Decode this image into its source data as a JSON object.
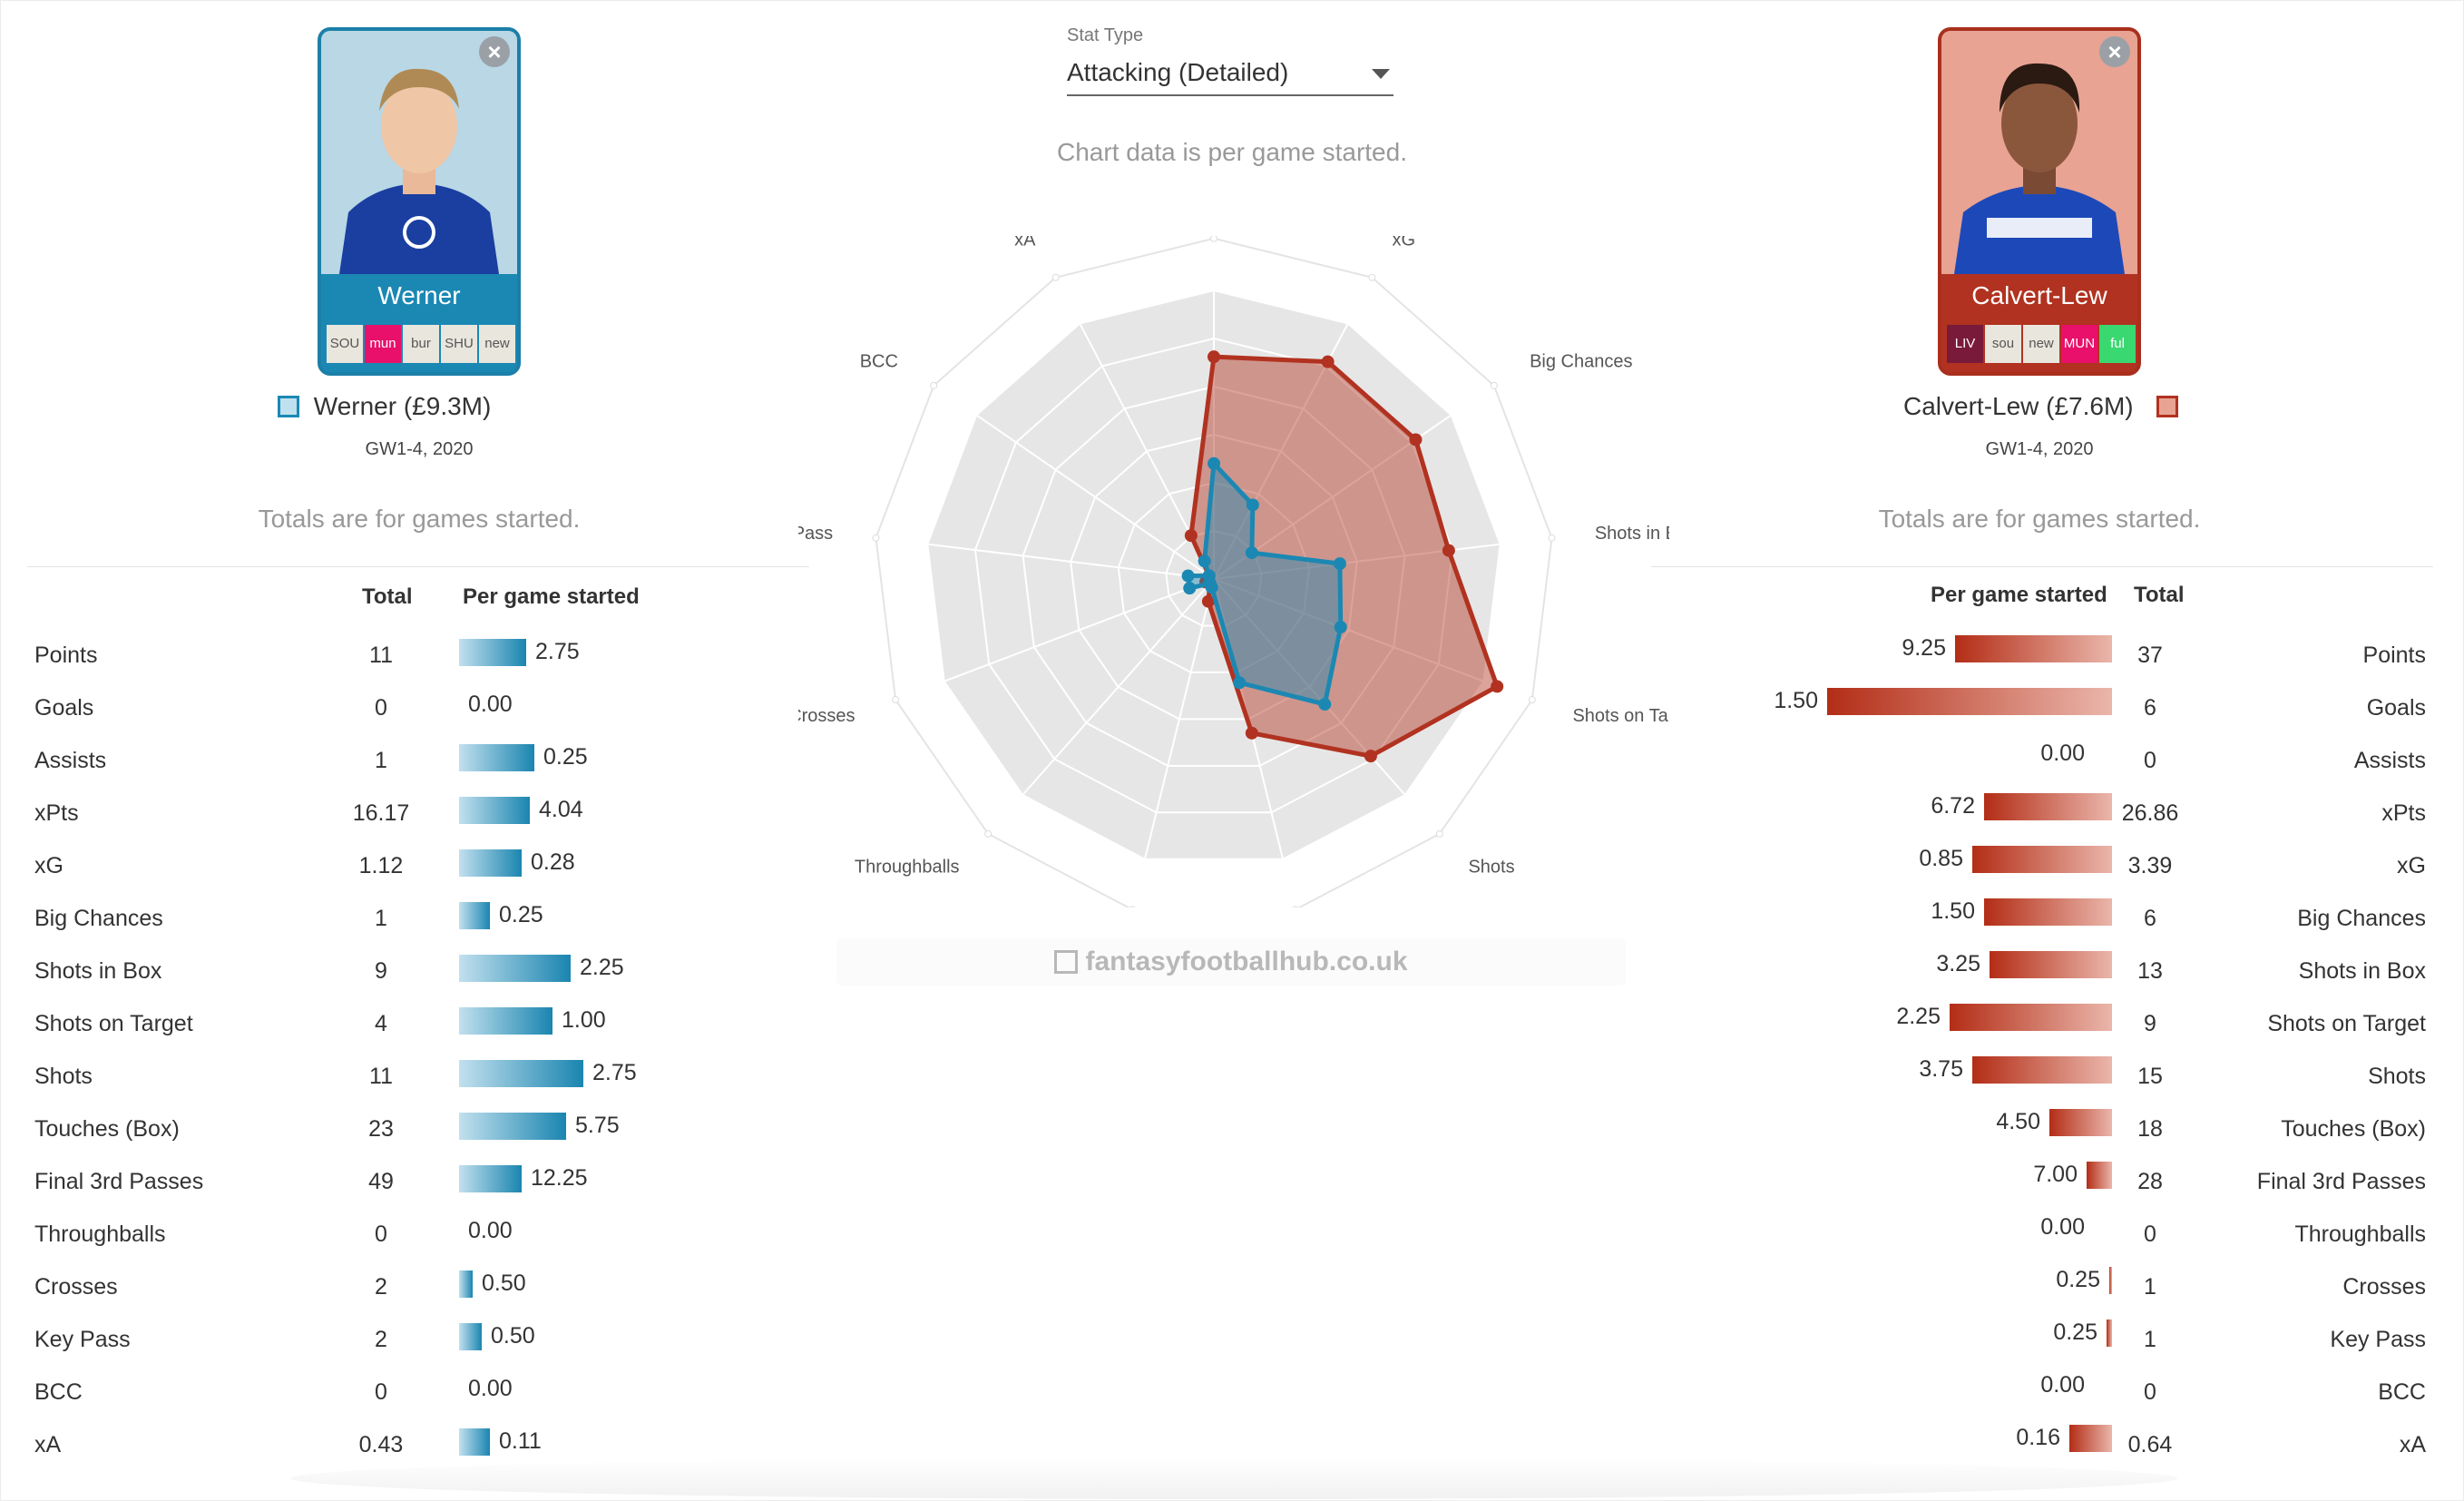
{
  "stat_type": {
    "label": "Stat Type",
    "value": "Attacking (Detailed)"
  },
  "chart_note": "Chart data is per game started.",
  "watermark": "fantasyfootballhub.co.uk",
  "players": {
    "left": {
      "card_name": "Werner",
      "legend": "Werner (£9.3M)",
      "period": "GW1-4, 2020",
      "totals_note": "Totals are for games started.",
      "color": "#1b88b3",
      "fixtures": [
        {
          "label": "SOU",
          "bg": "#e9e6dd",
          "fg": "#555555"
        },
        {
          "label": "mun",
          "bg": "#e8106a",
          "fg": "#ffffff"
        },
        {
          "label": "bur",
          "bg": "#e9e6dd",
          "fg": "#555555"
        },
        {
          "label": "SHU",
          "bg": "#e9e6dd",
          "fg": "#555555"
        },
        {
          "label": "new",
          "bg": "#e9e6dd",
          "fg": "#555555"
        }
      ]
    },
    "right": {
      "card_name": "Calvert-Lew",
      "legend": "Calvert-Lew (£7.6M)",
      "period": "GW1-4, 2020",
      "totals_note": "Totals are for games started.",
      "color": "#b13220",
      "fixtures": [
        {
          "label": "LIV",
          "bg": "#7a1a3a",
          "fg": "#ffffff"
        },
        {
          "label": "sou",
          "bg": "#e9e6dd",
          "fg": "#555555"
        },
        {
          "label": "new",
          "bg": "#e9e6dd",
          "fg": "#555555"
        },
        {
          "label": "MUN",
          "bg": "#e8106a",
          "fg": "#ffffff"
        },
        {
          "label": "ful",
          "bg": "#3ad870",
          "fg": "#ffffff"
        }
      ]
    }
  },
  "table_headers": {
    "total": "Total",
    "per_game": "Per game started"
  },
  "stats": [
    {
      "label": "Points",
      "w_total": "11",
      "w_pg": "2.75",
      "w_frac": 0.15,
      "c_pg": "9.25",
      "c_total": "37",
      "c_frac": 0.55
    },
    {
      "label": "Goals",
      "w_total": "0",
      "w_pg": "0.00",
      "w_frac": 0,
      "c_pg": "1.50",
      "c_total": "6",
      "c_frac": 1.0
    },
    {
      "label": "Assists",
      "w_total": "1",
      "w_pg": "0.25",
      "w_frac": 0.17,
      "c_pg": "0.00",
      "c_total": "0",
      "c_frac": 0
    },
    {
      "label": "xPts",
      "w_total": "16.17",
      "w_pg": "4.04",
      "w_frac": 0.16,
      "c_pg": "6.72",
      "c_total": "26.86",
      "c_frac": 0.45
    },
    {
      "label": "xG",
      "w_total": "1.12",
      "w_pg": "0.28",
      "w_frac": 0.14,
      "c_pg": "0.85",
      "c_total": "3.39",
      "c_frac": 0.49
    },
    {
      "label": "Big Chances",
      "w_total": "1",
      "w_pg": "0.25",
      "w_frac": 0.07,
      "c_pg": "1.50",
      "c_total": "6",
      "c_frac": 0.45
    },
    {
      "label": "Shots in Box",
      "w_total": "9",
      "w_pg": "2.25",
      "w_frac": 0.25,
      "c_pg": "3.25",
      "c_total": "13",
      "c_frac": 0.43
    },
    {
      "label": "Shots on Target",
      "w_total": "4",
      "w_pg": "1.00",
      "w_frac": 0.21,
      "c_pg": "2.25",
      "c_total": "9",
      "c_frac": 0.57
    },
    {
      "label": "Shots",
      "w_total": "11",
      "w_pg": "2.75",
      "w_frac": 0.28,
      "c_pg": "3.75",
      "c_total": "15",
      "c_frac": 0.49
    },
    {
      "label": "Touches (Box)",
      "w_total": "23",
      "w_pg": "5.75",
      "w_frac": 0.24,
      "c_pg": "4.50",
      "c_total": "18",
      "c_frac": 0.22
    },
    {
      "label": "Final 3rd Passes",
      "w_total": "49",
      "w_pg": "12.25",
      "w_frac": 0.14,
      "c_pg": "7.00",
      "c_total": "28",
      "c_frac": 0.09
    },
    {
      "label": "Throughballs",
      "w_total": "0",
      "w_pg": "0.00",
      "w_frac": 0,
      "c_pg": "0.00",
      "c_total": "0",
      "c_frac": 0
    },
    {
      "label": "Crosses",
      "w_total": "2",
      "w_pg": "0.50",
      "w_frac": 0.03,
      "c_pg": "0.25",
      "c_total": "1",
      "c_frac": 0.01
    },
    {
      "label": "Key Pass",
      "w_total": "2",
      "w_pg": "0.50",
      "w_frac": 0.05,
      "c_pg": "0.25",
      "c_total": "1",
      "c_frac": 0.02
    },
    {
      "label": "BCC",
      "w_total": "0",
      "w_pg": "0.00",
      "w_frac": 0,
      "c_pg": "0.00",
      "c_total": "0",
      "c_frac": 0
    },
    {
      "label": "xA",
      "w_total": "0.43",
      "w_pg": "0.11",
      "w_frac": 0.07,
      "c_pg": "0.16",
      "c_total": "0.64",
      "c_frac": 0.15
    }
  ],
  "chart_data": {
    "type": "radar",
    "axes": [
      "xPts",
      "xG",
      "Big Chances",
      "Shots in Box",
      "Shots on Target",
      "Shots",
      "Touches (Box)",
      "Final 3rd Passes",
      "Throughballs",
      "Crosses",
      "Key Pass",
      "BCC",
      "xA"
    ],
    "range": [
      0,
      1
    ],
    "series": [
      {
        "name": "Calvert-Lew (£7.6M)",
        "color": "#b13220",
        "values": [
          0.77,
          0.85,
          0.85,
          0.82,
          1.05,
          0.82,
          0.55,
          0.08,
          0.02,
          0.03,
          0.02,
          0.02,
          0.17
        ]
      },
      {
        "name": "Werner (£9.3M)",
        "color": "#1b88b3",
        "values": [
          0.4,
          0.29,
          0.16,
          0.44,
          0.47,
          0.58,
          0.37,
          0.03,
          0.02,
          0.09,
          0.09,
          0.02,
          0.07
        ]
      }
    ]
  }
}
